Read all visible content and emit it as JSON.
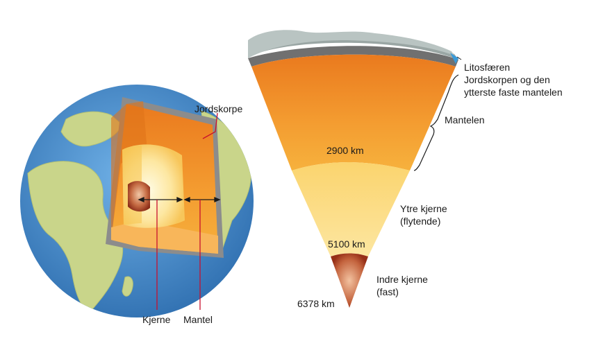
{
  "globe": {
    "crust_label": "Jordskorpe",
    "core_label": "Kjerne",
    "mantle_label": "Mantel"
  },
  "section": {
    "lithosphere_label": "Litosfæren",
    "lithosphere_desc_line1": "Jordskorpen og den",
    "lithosphere_desc_line2": "ytterste faste mantelen",
    "mantle_label": "Mantelen",
    "depth_2900": "2900 km",
    "outer_core_line1": "Ytre kjerne",
    "outer_core_line2": "(flytende)",
    "depth_5100": "5100 km",
    "inner_core_line1": "Indre kjerne",
    "inner_core_line2": "(fast)",
    "depth_6378": "6378 km"
  },
  "colors": {
    "ocean": "#4b8fd0",
    "land": "#c9d58a",
    "crust": "#8c8c8c",
    "mantle": "#f39a2e",
    "outer_core": "#fbd36b",
    "inner_core": "#a2391e",
    "pointer_line": "#c8102e"
  }
}
